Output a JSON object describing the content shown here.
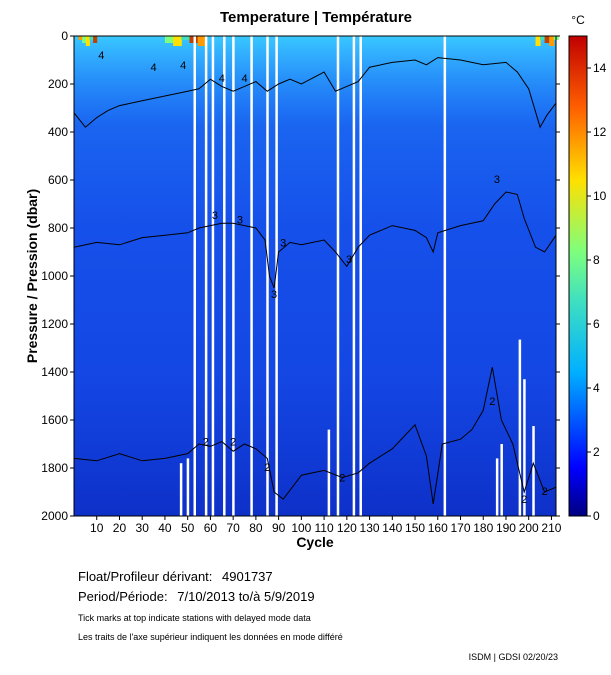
{
  "chart_data": {
    "type": "heatmap",
    "title": "Temperature | Température",
    "xlabel": "Cycle",
    "ylabel": "Pressure / Pression (dbar)",
    "xlim": [
      0,
      212
    ],
    "ylim": [
      2000,
      0
    ],
    "x_ticks": [
      10,
      20,
      30,
      40,
      50,
      60,
      70,
      80,
      90,
      100,
      110,
      120,
      130,
      140,
      150,
      160,
      170,
      180,
      190,
      200,
      210
    ],
    "x_tick_labels": [
      "10",
      "20",
      "30",
      "40",
      "50",
      "60",
      "70",
      "80",
      "90",
      "100",
      "110",
      "120",
      "130",
      "140",
      "150",
      "160",
      "170",
      "180",
      "190",
      "200",
      "210"
    ],
    "y_ticks": [
      0,
      200,
      400,
      600,
      800,
      1000,
      1200,
      1400,
      1600,
      1800,
      2000
    ],
    "y_tick_labels": [
      "0",
      "200",
      "400",
      "600",
      "800",
      "1000",
      "1200",
      "1400",
      "1600",
      "1800",
      "2000"
    ],
    "colorbar": {
      "unit": "°C",
      "range": [
        0,
        15
      ],
      "ticks": [
        0,
        2,
        4,
        6,
        8,
        10,
        12,
        14
      ],
      "tick_labels": [
        "0",
        "2",
        "4",
        "6",
        "8",
        "10",
        "12",
        "14"
      ]
    },
    "contours": [
      {
        "level": 2,
        "label": "2",
        "points": [
          [
            0,
            1760
          ],
          [
            10,
            1770
          ],
          [
            20,
            1740
          ],
          [
            30,
            1770
          ],
          [
            40,
            1760
          ],
          [
            50,
            1740
          ],
          [
            55,
            1700
          ],
          [
            60,
            1710
          ],
          [
            65,
            1690
          ],
          [
            70,
            1730
          ],
          [
            75,
            1700
          ],
          [
            80,
            1720
          ],
          [
            85,
            1760
          ],
          [
            88,
            1900
          ],
          [
            92,
            1930
          ],
          [
            100,
            1830
          ],
          [
            110,
            1810
          ],
          [
            118,
            1840
          ],
          [
            125,
            1820
          ],
          [
            130,
            1780
          ],
          [
            140,
            1720
          ],
          [
            150,
            1620
          ],
          [
            155,
            1750
          ],
          [
            158,
            1950
          ],
          [
            162,
            1700
          ],
          [
            170,
            1680
          ],
          [
            175,
            1640
          ],
          [
            180,
            1560
          ],
          [
            184,
            1380
          ],
          [
            188,
            1600
          ],
          [
            193,
            1700
          ],
          [
            198,
            1900
          ],
          [
            202,
            1780
          ],
          [
            207,
            1900
          ],
          [
            212,
            1880
          ]
        ]
      },
      {
        "level": 3,
        "label": "3",
        "points": [
          [
            0,
            880
          ],
          [
            10,
            860
          ],
          [
            20,
            870
          ],
          [
            30,
            840
          ],
          [
            40,
            830
          ],
          [
            50,
            820
          ],
          [
            55,
            800
          ],
          [
            60,
            790
          ],
          [
            65,
            780
          ],
          [
            70,
            780
          ],
          [
            75,
            790
          ],
          [
            80,
            800
          ],
          [
            84,
            850
          ],
          [
            86,
            1000
          ],
          [
            88,
            1050
          ],
          [
            90,
            900
          ],
          [
            95,
            860
          ],
          [
            100,
            870
          ],
          [
            110,
            850
          ],
          [
            115,
            900
          ],
          [
            120,
            960
          ],
          [
            125,
            880
          ],
          [
            130,
            830
          ],
          [
            140,
            790
          ],
          [
            150,
            810
          ],
          [
            155,
            840
          ],
          [
            158,
            900
          ],
          [
            160,
            820
          ],
          [
            170,
            790
          ],
          [
            180,
            770
          ],
          [
            185,
            700
          ],
          [
            190,
            650
          ],
          [
            195,
            660
          ],
          [
            198,
            760
          ],
          [
            203,
            880
          ],
          [
            207,
            900
          ],
          [
            212,
            830
          ]
        ]
      },
      {
        "level": 4,
        "label": "4",
        "points": [
          [
            0,
            320
          ],
          [
            5,
            380
          ],
          [
            10,
            340
          ],
          [
            15,
            310
          ],
          [
            20,
            290
          ],
          [
            30,
            270
          ],
          [
            40,
            250
          ],
          [
            50,
            230
          ],
          [
            55,
            220
          ],
          [
            60,
            180
          ],
          [
            65,
            210
          ],
          [
            70,
            230
          ],
          [
            75,
            210
          ],
          [
            80,
            190
          ],
          [
            85,
            230
          ],
          [
            90,
            200
          ],
          [
            95,
            180
          ],
          [
            100,
            200
          ],
          [
            110,
            150
          ],
          [
            115,
            230
          ],
          [
            120,
            210
          ],
          [
            125,
            190
          ],
          [
            130,
            130
          ],
          [
            140,
            110
          ],
          [
            150,
            100
          ],
          [
            155,
            120
          ],
          [
            160,
            90
          ],
          [
            170,
            100
          ],
          [
            180,
            120
          ],
          [
            190,
            110
          ],
          [
            195,
            150
          ],
          [
            200,
            220
          ],
          [
            205,
            380
          ],
          [
            208,
            330
          ],
          [
            212,
            280
          ]
        ]
      }
    ],
    "contour_label_points": [
      {
        "label": "4",
        "x": 12,
        "y": 80
      },
      {
        "label": "4",
        "x": 35,
        "y": 130
      },
      {
        "label": "4",
        "x": 48,
        "y": 120
      },
      {
        "label": "4",
        "x": 65,
        "y": 175
      },
      {
        "label": "4",
        "x": 75,
        "y": 175
      },
      {
        "label": "3",
        "x": 62,
        "y": 745
      },
      {
        "label": "3",
        "x": 73,
        "y": 765
      },
      {
        "label": "3",
        "x": 88,
        "y": 1075
      },
      {
        "label": "3",
        "x": 92,
        "y": 860
      },
      {
        "label": "3",
        "x": 121,
        "y": 930
      },
      {
        "label": "3",
        "x": 186,
        "y": 595
      },
      {
        "label": "2",
        "x": 58,
        "y": 1690
      },
      {
        "label": "2",
        "x": 70,
        "y": 1690
      },
      {
        "label": "2",
        "x": 85,
        "y": 1795
      },
      {
        "label": "2",
        "x": 118,
        "y": 1840
      },
      {
        "label": "2",
        "x": 184,
        "y": 1520
      },
      {
        "label": "2",
        "x": 198,
        "y": 1930
      },
      {
        "label": "2",
        "x": 207,
        "y": 1895
      }
    ],
    "missing_cycle_gaps": [
      {
        "cycle": 53,
        "depth": 0
      },
      {
        "cycle": 58,
        "depth": 0
      },
      {
        "cycle": 61,
        "depth": 0
      },
      {
        "cycle": 66,
        "depth": 0
      },
      {
        "cycle": 70,
        "depth": 0
      },
      {
        "cycle": 78,
        "depth": 0
      },
      {
        "cycle": 85,
        "depth": 0
      },
      {
        "cycle": 89,
        "depth": 0
      },
      {
        "cycle": 116,
        "depth": 0
      },
      {
        "cycle": 123,
        "depth": 0
      },
      {
        "cycle": 126,
        "depth": 0
      },
      {
        "cycle": 163,
        "depth": 0
      },
      {
        "cycle": 112,
        "depth": 1640
      },
      {
        "cycle": 196,
        "depth": 1265
      },
      {
        "cycle": 198,
        "depth": 1430
      },
      {
        "cycle": 202,
        "depth": 1625
      },
      {
        "cycle": 47,
        "depth": 1780
      },
      {
        "cycle": 50,
        "depth": 1760
      },
      {
        "cycle": 186,
        "depth": 1760
      },
      {
        "cycle": 188,
        "depth": 1700
      }
    ]
  },
  "info": {
    "float_label": "Float/Profileur dérivant:",
    "float_id": "4901737",
    "period_label": "Period/Période:",
    "period_value": "7/10/2013  to/à  5/9/2019",
    "note_en": "Tick marks at top indicate stations with delayed mode data",
    "note_fr": "Les traits de l'axe supérieur indiquent les données en mode différé",
    "credit": "ISDM | GDSI  02/20/23"
  }
}
